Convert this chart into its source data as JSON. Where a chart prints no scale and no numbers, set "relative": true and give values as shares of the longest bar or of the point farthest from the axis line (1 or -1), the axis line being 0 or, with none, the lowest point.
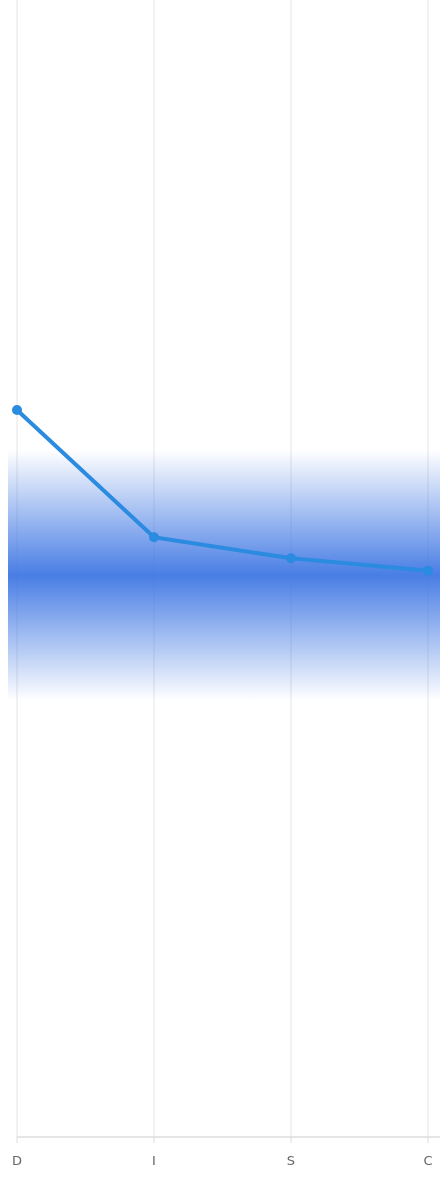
{
  "chart_data": {
    "type": "line",
    "relative": true,
    "categories": [
      "D",
      "I",
      "S",
      "C"
    ],
    "series": [
      {
        "color": "#2b8be0",
        "values": [
          1,
          0.825,
          0.796,
          0.779
        ]
      }
    ],
    "bands": [
      {
        "axis": "y",
        "from": 0.6,
        "to": 0.945,
        "color": "#3f77e3"
      }
    ],
    "grid": "x",
    "marker": "circle",
    "line_style": "solid"
  }
}
